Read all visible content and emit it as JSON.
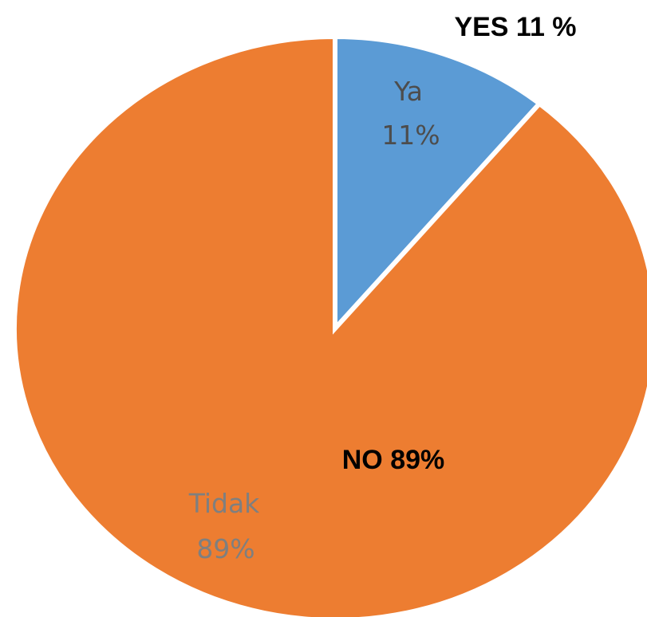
{
  "chart_data": {
    "type": "pie",
    "categories": [
      "Ya",
      "Tidak"
    ],
    "values": [
      11,
      89
    ],
    "data_labels": [
      "11%",
      "89%"
    ],
    "colors": [
      "#5b9bd5",
      "#ed7d31"
    ],
    "annotations": [
      "YES 11 %",
      "NO 89%"
    ]
  }
}
